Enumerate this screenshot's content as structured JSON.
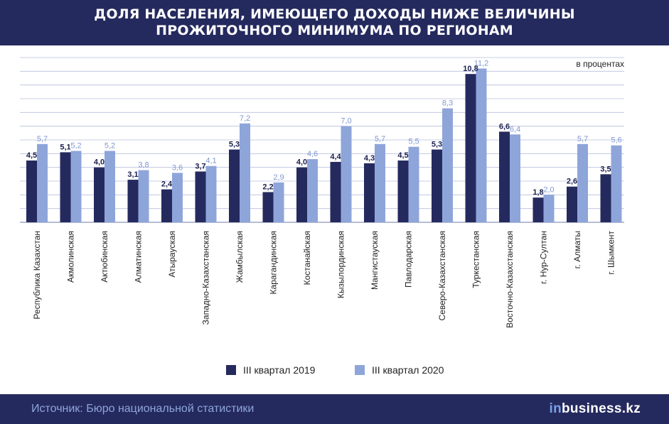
{
  "header": {
    "title_line1": "ДОЛЯ НАСЕЛЕНИЯ, ИМЕЮЩЕГО ДОХОДЫ НИЖЕ ВЕЛИЧИНЫ",
    "title_line2": "ПРОЖИТОЧНОГО МИНИМУМА ПО РЕГИОНАМ"
  },
  "footer": {
    "source": "Источник: Бюро национальной статистики",
    "brand_prefix": "in",
    "brand_rest": "business.kz"
  },
  "colors": {
    "header_bg": "#252a5e",
    "series_2019": "#252a5e",
    "series_2020": "#8ea5da",
    "grid": "#b7bfdc"
  },
  "chart_data": {
    "type": "bar",
    "title": "ДОЛЯ НАСЕЛЕНИЯ, ИМЕЮЩЕГО ДОХОДЫ НИЖЕ ВЕЛИЧИНЫ ПРОЖИТОЧНОГО МИНИМУМА ПО РЕГИОНАМ",
    "unit_label": "в процентах",
    "ylim": [
      0,
      12
    ],
    "grid": true,
    "legend_position": "bottom",
    "categories": [
      "Республика Казахстан",
      "Акмолинская",
      "Актюбинская",
      "Алматинская",
      "Атырауская",
      "Западно-Казахстанская",
      "Жамбылская",
      "Карагандинская",
      "Костанайская",
      "Кызылординская",
      "Мангистауская",
      "Павлодарская",
      "Северо-Казахстанская",
      "Туркестанская",
      "Восточно-Казахстанская",
      "г. Нур-Султан",
      "г. Алматы",
      "г. Шымкент"
    ],
    "series": [
      {
        "name": "III квартал 2019",
        "values": [
          4.5,
          5.1,
          4.0,
          3.1,
          2.4,
          3.7,
          5.3,
          2.2,
          4.0,
          4.4,
          4.3,
          4.5,
          5.3,
          10.8,
          6.6,
          1.8,
          2.6,
          3.5
        ],
        "labels": [
          "4,5",
          "5,1",
          "4,0",
          "3,1",
          "2,4",
          "3,7",
          "5,3",
          "2,2",
          "4,0",
          "4,4",
          "4,3",
          "4,5",
          "5,3",
          "10,8",
          "6,6",
          "1,8",
          "2,6",
          "3,5"
        ]
      },
      {
        "name": "III квартал 2020",
        "values": [
          5.7,
          5.2,
          5.2,
          3.8,
          3.6,
          4.1,
          7.2,
          2.9,
          4.6,
          7.0,
          5.7,
          5.5,
          8.3,
          11.2,
          6.4,
          2.0,
          5.7,
          5.6
        ],
        "labels": [
          "5,7",
          "5,2",
          "5,2",
          "3,8",
          "3,6",
          "4,1",
          "7,2",
          "2,9",
          "4,6",
          "7,0",
          "5,7",
          "5,5",
          "8,3",
          "11,2",
          "6,4",
          "2,0",
          "5,7",
          "5,6"
        ]
      }
    ]
  }
}
